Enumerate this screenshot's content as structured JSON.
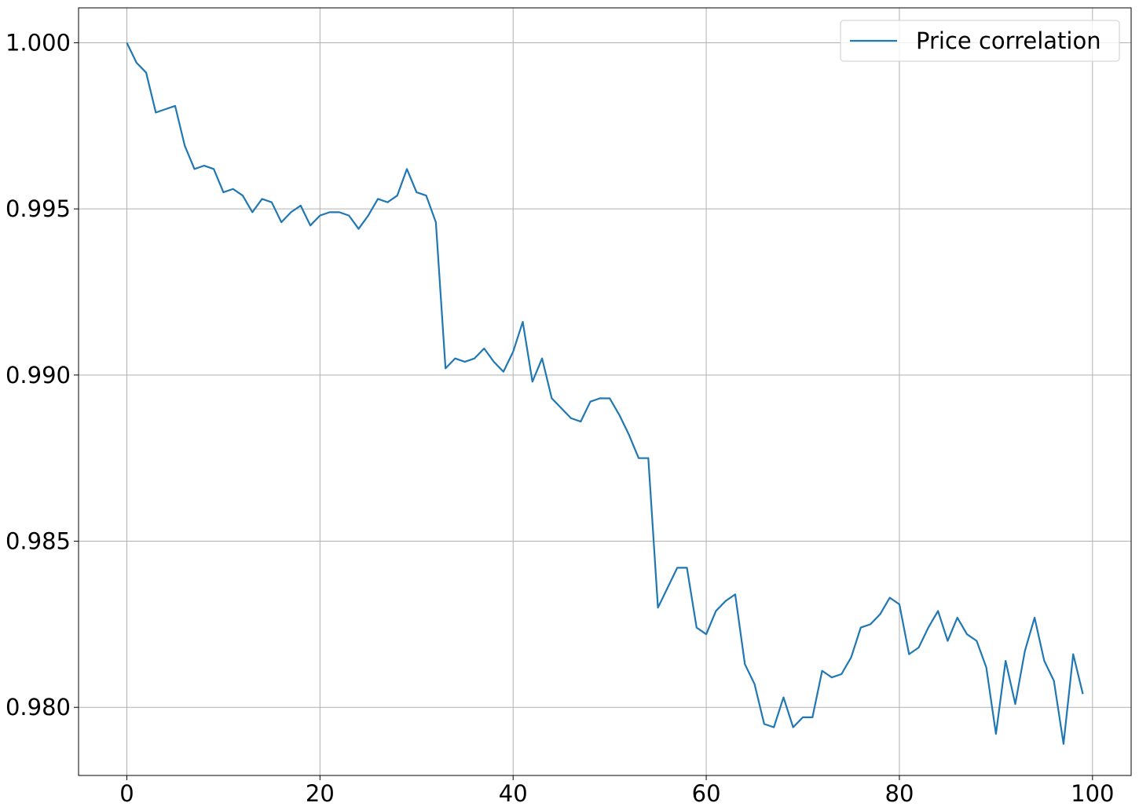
{
  "chart_data": {
    "type": "line",
    "title": "",
    "xlabel": "",
    "ylabel": "",
    "xlim": [
      -5,
      104
    ],
    "ylim": [
      0.97795,
      1.00105
    ],
    "x_ticks": [
      0,
      20,
      40,
      60,
      80,
      100
    ],
    "x_tick_labels": [
      "0",
      "20",
      "40",
      "60",
      "80",
      "100"
    ],
    "y_ticks": [
      0.98,
      0.985,
      0.99,
      0.995,
      1.0
    ],
    "y_tick_labels": [
      "0.980",
      "0.985",
      "0.990",
      "0.995",
      "1.000"
    ],
    "grid": true,
    "legend_position": "top-right",
    "series": [
      {
        "name": "Price correlation",
        "color": "#1f77b4",
        "x": [
          0,
          1,
          2,
          3,
          4,
          5,
          6,
          7,
          8,
          9,
          10,
          11,
          12,
          13,
          14,
          15,
          16,
          17,
          18,
          19,
          20,
          21,
          22,
          23,
          24,
          25,
          26,
          27,
          28,
          29,
          30,
          31,
          32,
          33,
          34,
          35,
          36,
          37,
          38,
          39,
          40,
          41,
          42,
          43,
          44,
          45,
          46,
          47,
          48,
          49,
          50,
          51,
          52,
          53,
          54,
          55,
          56,
          57,
          58,
          59,
          60,
          61,
          62,
          63,
          64,
          65,
          66,
          67,
          68,
          69,
          70,
          71,
          72,
          73,
          74,
          75,
          76,
          77,
          78,
          79,
          80,
          81,
          82,
          83,
          84,
          85,
          86,
          87,
          88,
          89,
          90,
          91,
          92,
          93,
          94,
          95,
          96,
          97,
          98,
          99
        ],
        "values": [
          1.0,
          0.9994,
          0.9991,
          0.9979,
          0.998,
          0.9981,
          0.9969,
          0.9962,
          0.9963,
          0.9962,
          0.9955,
          0.9956,
          0.9954,
          0.9949,
          0.9953,
          0.9952,
          0.9946,
          0.9949,
          0.9951,
          0.9945,
          0.9948,
          0.9949,
          0.9949,
          0.9948,
          0.9944,
          0.9948,
          0.9953,
          0.9952,
          0.9954,
          0.9962,
          0.9955,
          0.9954,
          0.9946,
          0.9902,
          0.9905,
          0.9904,
          0.9905,
          0.9908,
          0.9904,
          0.9901,
          0.9907,
          0.9916,
          0.9898,
          0.9905,
          0.9893,
          0.989,
          0.9887,
          0.9886,
          0.9892,
          0.9893,
          0.9893,
          0.9888,
          0.9882,
          0.9875,
          0.9875,
          0.983,
          0.9836,
          0.9842,
          0.9842,
          0.9824,
          0.9822,
          0.9829,
          0.9832,
          0.9834,
          0.9813,
          0.9807,
          0.9795,
          0.9794,
          0.9803,
          0.9794,
          0.9797,
          0.9797,
          0.9811,
          0.9809,
          0.981,
          0.9815,
          0.9824,
          0.9825,
          0.9828,
          0.9833,
          0.9831,
          0.9816,
          0.9818,
          0.9824,
          0.9829,
          0.982,
          0.9827,
          0.9822,
          0.982,
          0.9812,
          0.9792,
          0.9814,
          0.9801,
          0.9817,
          0.9827,
          0.9814,
          0.9808,
          0.9789,
          0.9816,
          0.9804
        ]
      }
    ]
  }
}
